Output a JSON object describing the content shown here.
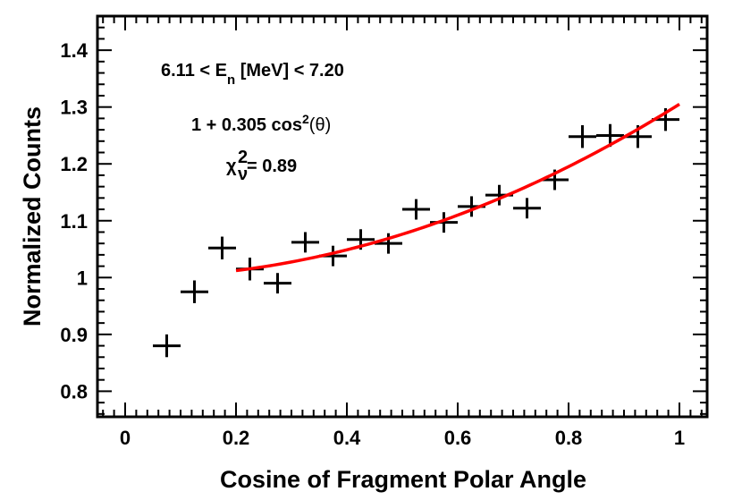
{
  "chart_data": {
    "type": "scatter",
    "title": "",
    "xlabel": "Cosine of Fragment Polar Angle",
    "ylabel": "Normalized Counts",
    "xlim": [
      -0.05,
      1.05
    ],
    "ylim": [
      0.755,
      1.46
    ],
    "x_ticks": [
      0,
      0.2,
      0.4,
      0.6,
      0.8,
      1
    ],
    "x_tick_labels": [
      "0",
      "0.2",
      "0.4",
      "0.6",
      "0.8",
      "1"
    ],
    "y_ticks": [
      0.8,
      0.9,
      1.0,
      1.1,
      1.2,
      1.3,
      1.4
    ],
    "y_tick_labels": [
      "0.8",
      "0.9",
      "1",
      "1.1",
      "1.2",
      "1.3",
      "1.4"
    ],
    "series": [
      {
        "name": "data",
        "style": "crosses",
        "color": "#000000",
        "x_halfwidth": 0.025,
        "x": [
          0.075,
          0.125,
          0.175,
          0.225,
          0.275,
          0.325,
          0.375,
          0.425,
          0.475,
          0.525,
          0.575,
          0.625,
          0.675,
          0.725,
          0.775,
          0.825,
          0.875,
          0.925,
          0.975
        ],
        "y": [
          0.88,
          0.975,
          1.052,
          1.015,
          0.99,
          1.062,
          1.038,
          1.067,
          1.06,
          1.12,
          1.097,
          1.125,
          1.145,
          1.122,
          1.172,
          1.248,
          1.25,
          1.248,
          1.278
        ],
        "y_err": [
          0.02,
          0.02,
          0.02,
          0.02,
          0.018,
          0.018,
          0.018,
          0.018,
          0.018,
          0.018,
          0.018,
          0.018,
          0.018,
          0.018,
          0.018,
          0.02,
          0.02,
          0.02,
          0.02
        ]
      },
      {
        "name": "fit",
        "style": "line",
        "color": "#ff0000",
        "x_range": [
          0.2,
          1.0
        ],
        "amplitude": 1.0,
        "a2": 0.305
      }
    ],
    "annotations": {
      "energy_prefix": "6.11 < E",
      "energy_sub": "n",
      "energy_suffix": " [MeV] < 7.20",
      "fit_prefix": "1 + 0.305 cos",
      "fit_sup": "2",
      "fit_suffix": "(θ)",
      "chi_symbol": "χ",
      "chi_sup": "2",
      "chi_sub": "ν",
      "chi_value": " = 0.89"
    }
  }
}
